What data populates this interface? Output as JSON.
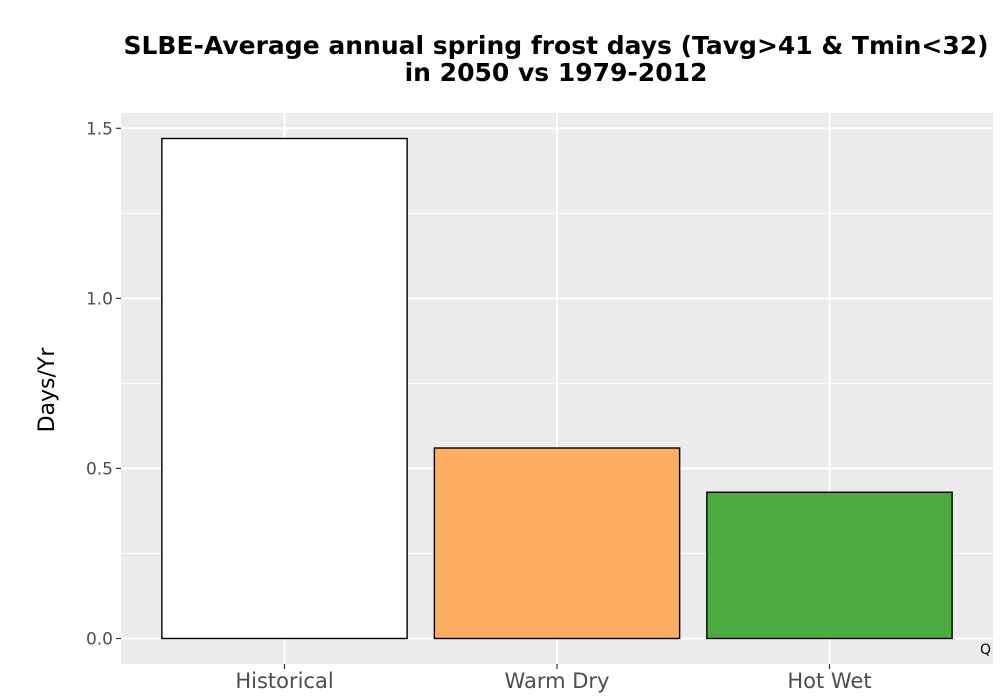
{
  "chart_data": {
    "type": "bar",
    "title_lines": [
      "SLBE-Average annual spring frost days (Tavg>41 & Tmin<32)",
      "in 2050 vs 1979-2012"
    ],
    "xlabel": "",
    "ylabel": "Days/Yr",
    "categories": [
      "Historical",
      "Warm Dry",
      "Hot Wet"
    ],
    "values": [
      1.47,
      0.56,
      0.43
    ],
    "colors": [
      "#FFFFFF",
      "#FDAE61",
      "#4DAC3F"
    ],
    "ylim": [
      -0.075,
      1.545
    ],
    "yticks": [
      0.0,
      0.5,
      1.0,
      1.5
    ],
    "ytick_labels": [
      "0.0",
      "0.5",
      "1.0",
      "1.5"
    ],
    "grid": true,
    "panel_background": "#EBEBEB",
    "corner_mark": "Q"
  }
}
